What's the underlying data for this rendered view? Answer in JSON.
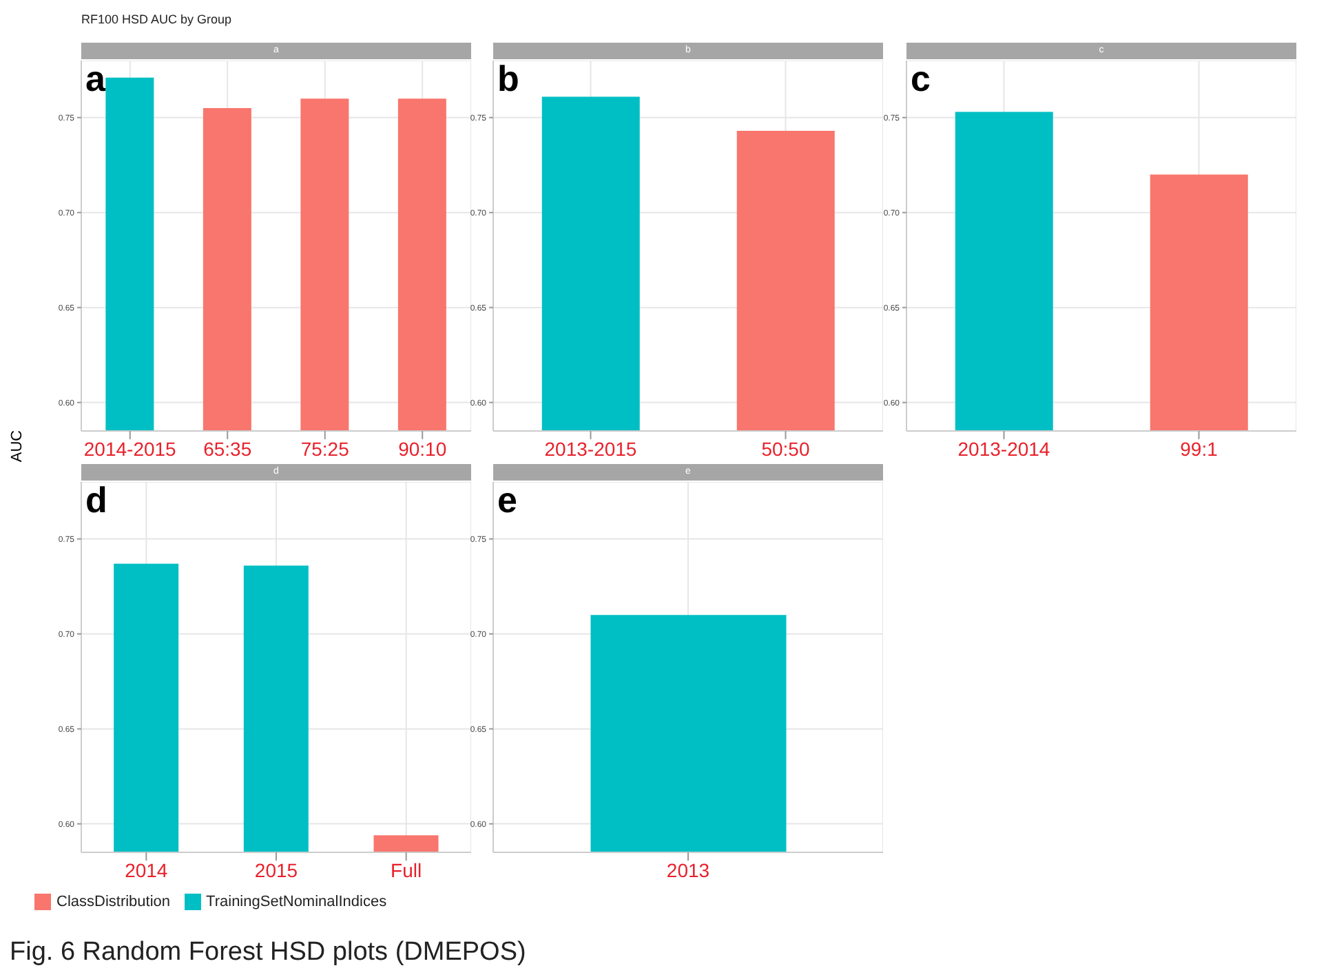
{
  "chart_data": [
    {
      "type": "bar",
      "title": "RF100 HSD AUC by Group",
      "subtitle": "a",
      "ylabel": "AUC",
      "annotations": [
        "a"
      ],
      "categories": [
        "2014-2015",
        "65:35",
        "75:25",
        "90:10"
      ],
      "stacked": true,
      "grid": true,
      "ylim": [
        0.585,
        0.78
      ],
      "yticks": [
        {
          "value": 0.6,
          "label": "0.60"
        },
        {
          "value": 0.65,
          "label": "0.65"
        },
        {
          "value": 0.7,
          "label": "0.70"
        },
        {
          "value": 0.75,
          "label": "0.75"
        }
      ],
      "series": [
        {
          "color": "#f8766d",
          "values": [
            null,
            0.755,
            0.76,
            0.76
          ]
        },
        {
          "color": "#00bfc4",
          "values": [
            0.771,
            null,
            null,
            null
          ]
        }
      ]
    },
    {
      "type": "bar",
      "subtitle": "b",
      "annotations": [
        "b"
      ],
      "categories": [
        "2013-2015",
        "50:50"
      ],
      "stacked": true,
      "grid": true,
      "ylim": [
        0.585,
        0.78
      ],
      "yticks": [
        {
          "value": 0.6,
          "label": "0.60"
        },
        {
          "value": 0.65,
          "label": "0.65"
        },
        {
          "value": 0.7,
          "label": "0.70"
        },
        {
          "value": 0.75,
          "label": "0.75"
        }
      ],
      "series": [
        {
          "color": "#f8766d",
          "values": [
            null,
            0.743
          ]
        },
        {
          "color": "#00bfc4",
          "values": [
            0.761,
            null
          ]
        }
      ]
    },
    {
      "type": "bar",
      "subtitle": "c",
      "annotations": [
        "c"
      ],
      "categories": [
        "2013-2014",
        "99:1"
      ],
      "stacked": true,
      "grid": true,
      "ylim": [
        0.585,
        0.78
      ],
      "yticks": [
        {
          "value": 0.6,
          "label": "0.60"
        },
        {
          "value": 0.65,
          "label": "0.65"
        },
        {
          "value": 0.7,
          "label": "0.70"
        },
        {
          "value": 0.75,
          "label": "0.75"
        }
      ],
      "series": [
        {
          "color": "#f8766d",
          "values": [
            null,
            0.72
          ]
        },
        {
          "color": "#00bfc4",
          "values": [
            0.753,
            null
          ]
        }
      ]
    },
    {
      "type": "bar",
      "subtitle": "d",
      "annotations": [
        "d",
        "Fig. 6  Random Forest HSD plots (DMEPOS)"
      ],
      "categories": [
        "2014",
        "2015",
        "Full"
      ],
      "stacked": true,
      "grid": true,
      "legend": "bottom",
      "ylim": [
        0.585,
        0.78
      ],
      "yticks": [
        {
          "value": 0.6,
          "label": "0.60"
        },
        {
          "value": 0.65,
          "label": "0.65"
        },
        {
          "value": 0.7,
          "label": "0.70"
        },
        {
          "value": 0.75,
          "label": "0.75"
        }
      ],
      "series": [
        {
          "name": "ClassDistribution",
          "color": "#f8766d",
          "values": [
            null,
            null,
            0.594
          ]
        },
        {
          "name": "TrainingSetNominalIndices",
          "color": "#00bfc4",
          "values": [
            0.737,
            0.736,
            null
          ]
        }
      ]
    },
    {
      "type": "bar",
      "subtitle": "e",
      "annotations": [
        "e"
      ],
      "categories": [
        "2013"
      ],
      "stacked": true,
      "grid": true,
      "ylim": [
        0.585,
        0.78
      ],
      "yticks": [
        {
          "value": 0.6,
          "label": "0.60"
        },
        {
          "value": 0.65,
          "label": "0.65"
        },
        {
          "value": 0.7,
          "label": "0.70"
        },
        {
          "value": 0.75,
          "label": "0.75"
        }
      ],
      "series": [
        {
          "color": "#f8766d",
          "values": [
            null
          ]
        },
        {
          "color": "#00bfc4",
          "values": [
            0.71
          ]
        }
      ]
    }
  ]
}
